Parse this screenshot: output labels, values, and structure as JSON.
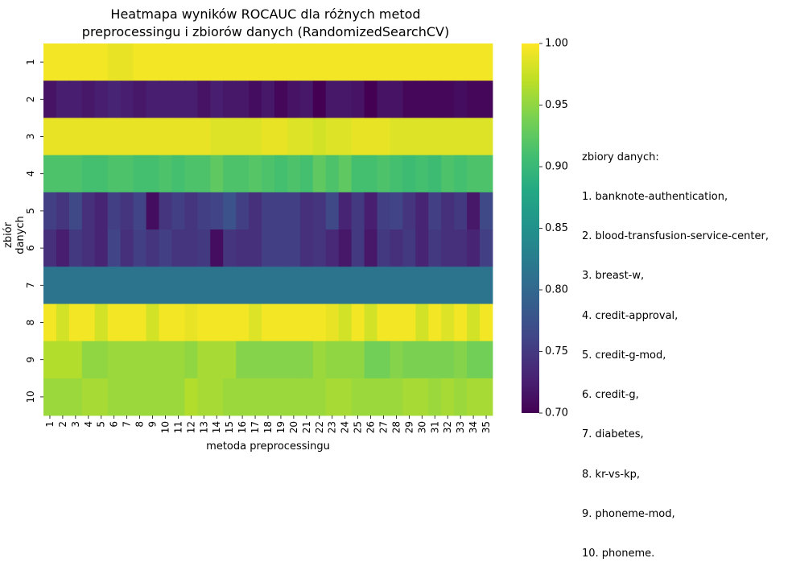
{
  "chart_data": {
    "type": "heatmap",
    "title_lines": [
      "Heatmapa wyników ROCAUC dla różnych metod",
      "preprocessingu i zbiorów danych (RandomizedSearchCV)"
    ],
    "xlabel": "metoda preprocessingu",
    "ylabel": "zbiór danych",
    "x_labels": [
      "1",
      "2",
      "3",
      "4",
      "5",
      "6",
      "7",
      "8",
      "9",
      "10",
      "11",
      "12",
      "13",
      "14",
      "15",
      "16",
      "17",
      "18",
      "19",
      "20",
      "21",
      "22",
      "23",
      "24",
      "25",
      "26",
      "27",
      "28",
      "29",
      "30",
      "31",
      "32",
      "33",
      "34",
      "35"
    ],
    "y_labels": [
      "1",
      "2",
      "3",
      "4",
      "5",
      "6",
      "7",
      "8",
      "9",
      "10"
    ],
    "colormap": "viridis",
    "vmin": 0.7,
    "vmax": 1.0,
    "colorbar_ticks": [
      "0.70",
      "0.75",
      "0.80",
      "0.85",
      "0.90",
      "0.95",
      "1.00"
    ],
    "values": [
      [
        0.995,
        0.995,
        0.995,
        0.995,
        0.995,
        0.99,
        0.99,
        0.995,
        0.995,
        0.995,
        0.995,
        0.995,
        0.995,
        0.995,
        0.995,
        0.995,
        0.995,
        0.995,
        0.995,
        0.995,
        0.995,
        0.995,
        0.995,
        0.995,
        0.995,
        0.995,
        0.995,
        0.995,
        0.995,
        0.995,
        0.995,
        0.995,
        0.995,
        0.995,
        0.995
      ],
      [
        0.715,
        0.725,
        0.725,
        0.72,
        0.725,
        0.73,
        0.725,
        0.72,
        0.725,
        0.725,
        0.725,
        0.725,
        0.715,
        0.725,
        0.72,
        0.72,
        0.71,
        0.72,
        0.705,
        0.715,
        0.72,
        0.7,
        0.72,
        0.72,
        0.715,
        0.7,
        0.715,
        0.715,
        0.705,
        0.705,
        0.705,
        0.705,
        0.71,
        0.705,
        0.705
      ],
      [
        0.99,
        0.99,
        0.99,
        0.99,
        0.99,
        0.99,
        0.99,
        0.99,
        0.99,
        0.99,
        0.99,
        0.99,
        0.99,
        0.985,
        0.985,
        0.985,
        0.985,
        0.99,
        0.99,
        0.985,
        0.985,
        0.98,
        0.985,
        0.985,
        0.99,
        0.99,
        0.99,
        0.985,
        0.985,
        0.985,
        0.985,
        0.985,
        0.985,
        0.985,
        0.985
      ],
      [
        0.915,
        0.915,
        0.915,
        0.91,
        0.91,
        0.915,
        0.915,
        0.91,
        0.91,
        0.915,
        0.91,
        0.915,
        0.915,
        0.925,
        0.915,
        0.915,
        0.92,
        0.915,
        0.91,
        0.915,
        0.91,
        0.925,
        0.915,
        0.925,
        0.91,
        0.91,
        0.915,
        0.91,
        0.905,
        0.91,
        0.905,
        0.915,
        0.91,
        0.915,
        0.915
      ],
      [
        0.755,
        0.745,
        0.765,
        0.74,
        0.73,
        0.755,
        0.745,
        0.76,
        0.71,
        0.745,
        0.755,
        0.745,
        0.755,
        0.76,
        0.775,
        0.755,
        0.74,
        0.755,
        0.755,
        0.755,
        0.74,
        0.745,
        0.765,
        0.73,
        0.75,
        0.725,
        0.755,
        0.76,
        0.745,
        0.73,
        0.755,
        0.74,
        0.75,
        0.72,
        0.765
      ],
      [
        0.74,
        0.725,
        0.75,
        0.74,
        0.73,
        0.76,
        0.74,
        0.755,
        0.745,
        0.755,
        0.745,
        0.745,
        0.75,
        0.71,
        0.745,
        0.74,
        0.74,
        0.755,
        0.755,
        0.755,
        0.74,
        0.745,
        0.735,
        0.72,
        0.75,
        0.72,
        0.75,
        0.74,
        0.75,
        0.73,
        0.75,
        0.74,
        0.74,
        0.73,
        0.755
      ],
      [
        0.815,
        0.815,
        0.815,
        0.815,
        0.815,
        0.815,
        0.815,
        0.815,
        0.815,
        0.815,
        0.815,
        0.815,
        0.815,
        0.815,
        0.815,
        0.815,
        0.815,
        0.815,
        0.815,
        0.815,
        0.815,
        0.815,
        0.815,
        0.815,
        0.815,
        0.815,
        0.815,
        0.815,
        0.815,
        0.815,
        0.815,
        0.815,
        0.815,
        0.815,
        0.815
      ],
      [
        0.995,
        0.98,
        0.995,
        0.995,
        0.98,
        0.995,
        0.995,
        0.995,
        0.98,
        0.995,
        0.995,
        0.99,
        0.995,
        0.995,
        0.995,
        0.995,
        0.985,
        0.995,
        0.995,
        0.995,
        0.995,
        0.995,
        0.99,
        0.98,
        0.995,
        0.98,
        0.995,
        0.995,
        0.995,
        0.98,
        0.995,
        0.985,
        0.995,
        0.98,
        0.995
      ],
      [
        0.965,
        0.965,
        0.965,
        0.95,
        0.95,
        0.955,
        0.955,
        0.955,
        0.955,
        0.955,
        0.955,
        0.95,
        0.96,
        0.96,
        0.96,
        0.945,
        0.945,
        0.945,
        0.945,
        0.945,
        0.945,
        0.955,
        0.95,
        0.95,
        0.95,
        0.935,
        0.935,
        0.945,
        0.94,
        0.94,
        0.94,
        0.94,
        0.945,
        0.935,
        0.935
      ],
      [
        0.955,
        0.955,
        0.955,
        0.96,
        0.96,
        0.955,
        0.955,
        0.955,
        0.955,
        0.955,
        0.955,
        0.965,
        0.96,
        0.96,
        0.955,
        0.955,
        0.955,
        0.955,
        0.955,
        0.955,
        0.955,
        0.955,
        0.96,
        0.96,
        0.955,
        0.955,
        0.955,
        0.955,
        0.96,
        0.96,
        0.955,
        0.96,
        0.955,
        0.96,
        0.96
      ]
    ]
  },
  "legend_note": {
    "heading": "zbiory danych:",
    "items": [
      "1. banknote-authentication,",
      "2. blood-transfusion-service-center,",
      "3. breast-w,",
      "4. credit-approval,",
      "5. credit-g-mod,",
      "6. credit-g,",
      "7. diabetes,",
      "8. kr-vs-kp,",
      "9. phoneme-mod,",
      "10. phoneme."
    ]
  }
}
